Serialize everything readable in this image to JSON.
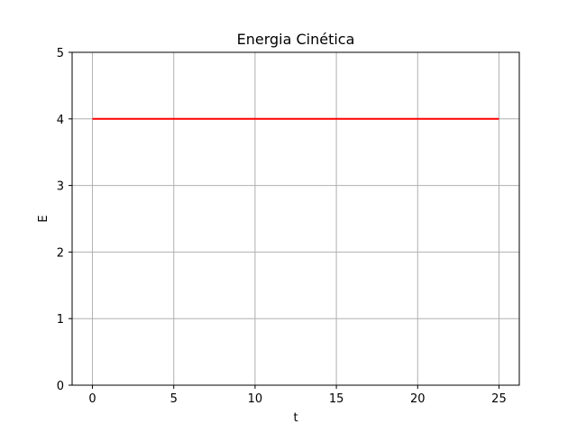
{
  "chart_data": {
    "type": "line",
    "title": "Energia Cinética",
    "xlabel": "t",
    "ylabel": "E",
    "xlim": [
      -1.25,
      26.25
    ],
    "ylim": [
      0,
      5
    ],
    "xticks": [
      0,
      5,
      10,
      15,
      20,
      25
    ],
    "yticks": [
      0,
      1,
      2,
      3,
      4,
      5
    ],
    "grid": true,
    "series": [
      {
        "color": "#ff0000",
        "x": [
          0,
          25
        ],
        "y": [
          4,
          4
        ]
      }
    ]
  }
}
